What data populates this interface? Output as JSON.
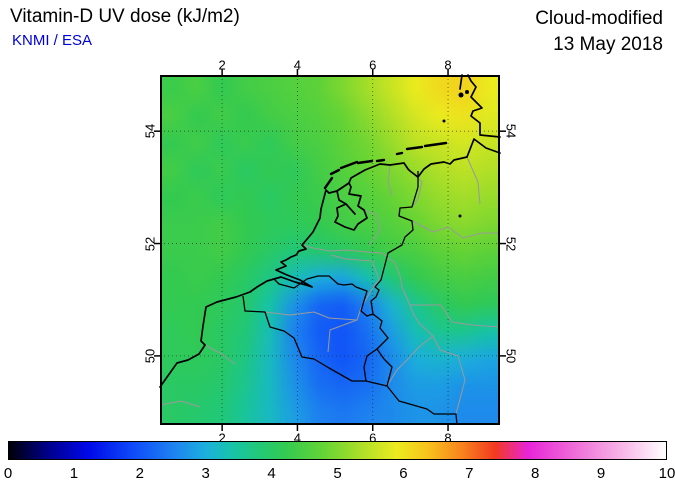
{
  "header": {
    "title": "Vitamin-D UV dose (kJ/m2)",
    "source": "KNMI / ESA",
    "mode": "Cloud-modified",
    "date": "13 May 2018"
  },
  "axes": {
    "lon_ticks": [
      2,
      4,
      6,
      8
    ],
    "lat_ticks": [
      54,
      52,
      50
    ]
  },
  "colorbar": {
    "min": 0,
    "max": 10,
    "tick_labels": [
      "0",
      "1",
      "2",
      "3",
      "4",
      "5",
      "6",
      "7",
      "8",
      "9",
      "10"
    ]
  },
  "colors": {
    "credit_blue": "#0000dd",
    "frame_black": "#000000",
    "minor_line_gray": "#9a9a9a"
  },
  "chart_data": {
    "type": "heatmap",
    "title": "Vitamin-D UV dose (kJ/m2)",
    "subtitle": "Cloud-modified",
    "date": "13 May 2018",
    "source": "KNMI / ESA",
    "units": "kJ/m2",
    "region": "North Sea / Netherlands / Belgium / western Germany",
    "lon_range": [
      0.35,
      9.38
    ],
    "lat_range": [
      48.77,
      55.0
    ],
    "lon_ticks": [
      2,
      4,
      6,
      8
    ],
    "lat_ticks": [
      50,
      52,
      54
    ],
    "scale_range": [
      0,
      10
    ],
    "scale_ticks": [
      0,
      1,
      2,
      3,
      4,
      5,
      6,
      7,
      8,
      9,
      10
    ],
    "grid_lines": true,
    "legend_position": "bottom-colorbar",
    "colormap": [
      [
        0.0,
        "#000008"
      ],
      [
        0.6,
        "#00008c"
      ],
      [
        1.2,
        "#0008e8"
      ],
      [
        1.9,
        "#0f4cfa"
      ],
      [
        2.5,
        "#1e82f0"
      ],
      [
        3.0,
        "#1cb0dc"
      ],
      [
        3.4,
        "#17c4a8"
      ],
      [
        3.8,
        "#22c878"
      ],
      [
        4.2,
        "#33ca52"
      ],
      [
        4.8,
        "#66d435"
      ],
      [
        5.4,
        "#b2e028"
      ],
      [
        5.9,
        "#ecec1f"
      ],
      [
        6.4,
        "#f8c01c"
      ],
      [
        6.9,
        "#f8821e"
      ],
      [
        7.4,
        "#f23a20"
      ],
      [
        7.9,
        "#e824d8"
      ],
      [
        8.6,
        "#ee6cd8"
      ],
      [
        9.3,
        "#f7b2e6"
      ],
      [
        10.0,
        "#ffffff"
      ]
    ],
    "grid": {
      "note": "Approximate UV dose (kJ/m2) read from map colors; row 0 = north edge (lat 55.0), last row = south edge (lat 48.77); col 0 = west edge (lon 0.35), last col = east edge (lon 9.38). Yellow maximum in the north-east, deep blue cloud-reduced minimum over Belgium / southern Netherlands.",
      "values": [
        [
          4.3,
          4.5,
          4.2,
          4.4,
          4.5,
          4.6,
          4.7,
          5.0,
          5.3,
          5.6,
          5.9,
          6.1,
          6.2,
          5.9
        ],
        [
          4.5,
          4.2,
          4.4,
          4.2,
          4.4,
          4.5,
          4.6,
          4.8,
          5.1,
          5.4,
          5.7,
          5.9,
          6.0,
          5.8
        ],
        [
          4.2,
          4.4,
          4.1,
          4.3,
          4.1,
          4.4,
          4.5,
          4.7,
          4.9,
          5.2,
          5.5,
          5.6,
          5.7,
          5.6
        ],
        [
          4.4,
          4.1,
          4.3,
          4.0,
          4.2,
          4.1,
          4.4,
          4.6,
          4.8,
          5.0,
          5.2,
          5.4,
          5.5,
          5.4
        ],
        [
          4.2,
          4.3,
          4.1,
          4.2,
          4.0,
          4.2,
          4.3,
          4.5,
          4.6,
          4.8,
          5.0,
          5.2,
          5.3,
          5.2
        ],
        [
          4.3,
          4.3,
          4.4,
          4.2,
          4.1,
          4.1,
          4.2,
          4.4,
          4.5,
          4.6,
          4.8,
          5.0,
          5.1,
          5.0
        ],
        [
          4.3,
          4.3,
          4.4,
          4.2,
          4.0,
          3.8,
          3.9,
          4.0,
          4.2,
          4.4,
          4.5,
          4.7,
          4.8,
          4.7
        ],
        [
          4.2,
          4.3,
          4.2,
          4.0,
          3.7,
          3.3,
          3.0,
          2.9,
          3.3,
          3.8,
          4.2,
          4.4,
          4.5,
          4.4
        ],
        [
          4.2,
          4.2,
          4.1,
          3.9,
          3.4,
          2.7,
          2.2,
          2.1,
          2.5,
          3.1,
          3.6,
          4.0,
          4.2,
          4.1
        ],
        [
          4.1,
          4.2,
          4.0,
          3.8,
          3.3,
          2.5,
          2.1,
          2.0,
          2.3,
          2.8,
          3.3,
          3.6,
          3.6,
          3.4
        ],
        [
          4.1,
          4.1,
          4.0,
          3.7,
          3.2,
          2.6,
          2.2,
          2.0,
          2.2,
          2.6,
          3.0,
          3.1,
          3.0,
          2.9
        ],
        [
          4.0,
          4.0,
          3.9,
          3.6,
          3.2,
          2.7,
          2.3,
          2.2,
          2.3,
          2.6,
          2.8,
          2.8,
          2.7,
          2.7
        ],
        [
          4.0,
          3.9,
          3.8,
          3.5,
          3.2,
          2.8,
          2.5,
          2.4,
          2.5,
          2.6,
          2.7,
          2.7,
          2.6,
          2.6
        ]
      ]
    }
  }
}
